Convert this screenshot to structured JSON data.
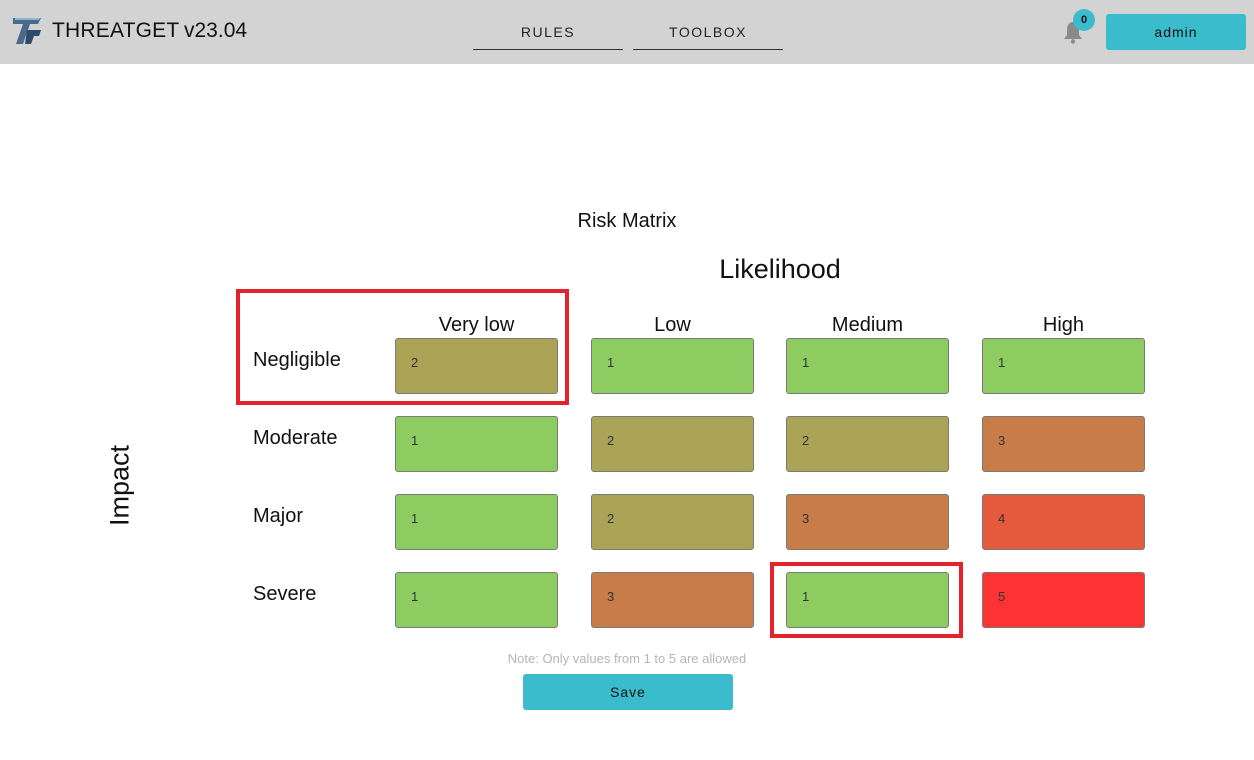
{
  "header": {
    "app_name": "THREATGET",
    "version": "v23.04",
    "nav": [
      {
        "label": "RULES"
      },
      {
        "label": "TOOLBOX"
      }
    ],
    "notification_count": "0",
    "user_label": "admin",
    "accent_color": "#3bbccc"
  },
  "matrix": {
    "title": "Risk Matrix",
    "x_axis_label": "Likelihood",
    "y_axis_label": "Impact",
    "columns": [
      "Very low",
      "Low",
      "Medium",
      "High"
    ],
    "rows": [
      {
        "label": "Negligible",
        "values": [
          "2",
          "1",
          "1",
          "1"
        ]
      },
      {
        "label": "Moderate",
        "values": [
          "1",
          "2",
          "2",
          "3"
        ]
      },
      {
        "label": "Major",
        "values": [
          "1",
          "2",
          "3",
          "4"
        ]
      },
      {
        "label": "Severe",
        "values": [
          "1",
          "3",
          "1",
          "5"
        ]
      }
    ],
    "level_colors": {
      "1": "#8ccc60",
      "2": "#aba356",
      "3": "#c87c48",
      "4": "#e55a3c",
      "5": "#ff3333"
    },
    "note": "Note: Only values from 1 to 5 are allowed",
    "save_label": "Save"
  },
  "annotations": {
    "highlight_color": "#e3222c"
  }
}
